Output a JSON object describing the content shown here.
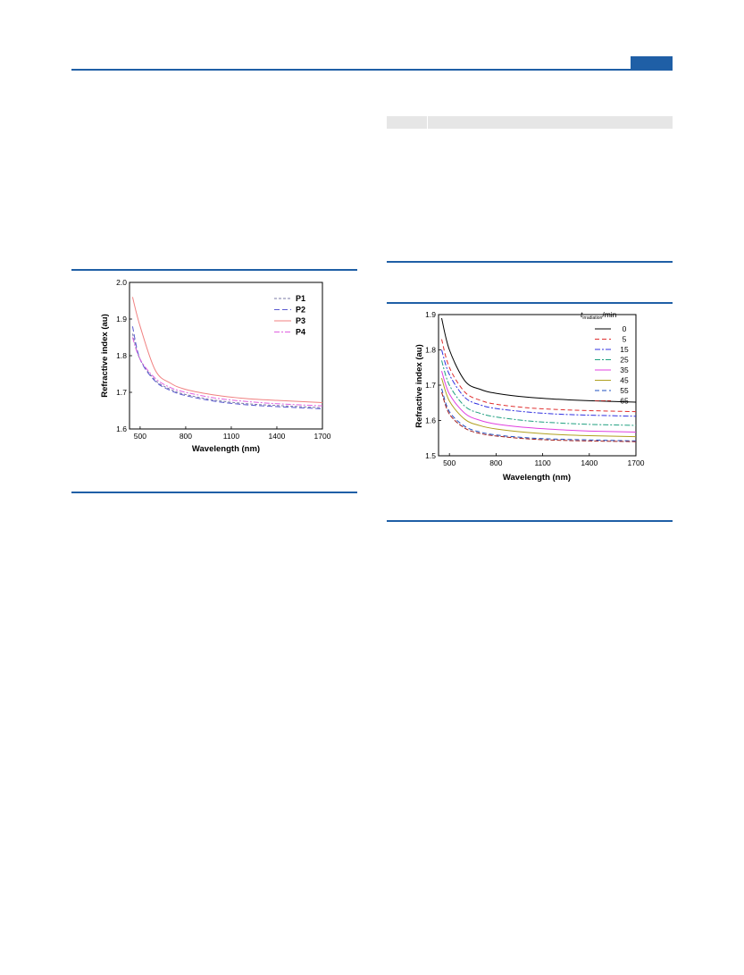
{
  "chart_data": [
    {
      "type": "line",
      "title": "",
      "xlabel": "Wavelength (nm)",
      "ylabel": "Refractive index (au)",
      "xlim": [
        430,
        1700
      ],
      "ylim": [
        1.6,
        2.0
      ],
      "xticks": [
        500,
        800,
        1100,
        1400,
        1700
      ],
      "yticks": [
        1.6,
        1.7,
        1.8,
        1.9,
        2.0
      ],
      "ytick_labels": [
        "1.6",
        "1.7",
        "1.8",
        "1.9",
        "2.0"
      ],
      "legend_position": "top-right",
      "x": [
        450,
        500,
        600,
        700,
        800,
        1000,
        1200,
        1400,
        1700
      ],
      "series": [
        {
          "name": "P1",
          "color": "#7a7aa6",
          "dash": "3,2",
          "values": [
            1.86,
            1.79,
            1.733,
            1.708,
            1.694,
            1.678,
            1.669,
            1.664,
            1.658
          ]
        },
        {
          "name": "P2",
          "color": "#5a5ad0",
          "dash": "6,3",
          "values": [
            1.88,
            1.79,
            1.73,
            1.705,
            1.691,
            1.675,
            1.666,
            1.661,
            1.655
          ]
        },
        {
          "name": "P3",
          "color": "#f08080",
          "dash": "",
          "values": [
            1.96,
            1.88,
            1.76,
            1.725,
            1.708,
            1.692,
            1.683,
            1.678,
            1.672
          ]
        },
        {
          "name": "P4",
          "color": "#e060e0",
          "dash": "6,2,2,2",
          "values": [
            1.85,
            1.79,
            1.738,
            1.713,
            1.7,
            1.684,
            1.675,
            1.669,
            1.663
          ]
        }
      ]
    },
    {
      "type": "line",
      "title": "",
      "xlabel": "Wavelength (nm)",
      "ylabel": "Refractive index (au)",
      "xlim": [
        430,
        1700
      ],
      "ylim": [
        1.5,
        1.9
      ],
      "xticks": [
        500,
        800,
        1100,
        1400,
        1700
      ],
      "yticks": [
        1.5,
        1.6,
        1.7,
        1.8,
        1.9
      ],
      "ytick_labels": [
        "1.5",
        "1.6",
        "1.7",
        "1.8",
        "1.9"
      ],
      "legend_title_main": "t",
      "legend_title_sub": "irradiation",
      "legend_title_unit": "/min",
      "legend_position": "top-right",
      "x": [
        450,
        500,
        600,
        700,
        800,
        1000,
        1200,
        1400,
        1700
      ],
      "series": [
        {
          "name": "0",
          "color": "#000000",
          "dash": "",
          "values": [
            1.89,
            1.8,
            1.712,
            1.688,
            1.677,
            1.666,
            1.66,
            1.656,
            1.652
          ]
        },
        {
          "name": "5",
          "color": "#e03030",
          "dash": "5,3",
          "values": [
            1.83,
            1.75,
            1.68,
            1.657,
            1.646,
            1.636,
            1.631,
            1.628,
            1.625
          ]
        },
        {
          "name": "15",
          "color": "#3030e0",
          "dash": "6,2,2,2",
          "values": [
            1.8,
            1.73,
            1.665,
            1.644,
            1.634,
            1.624,
            1.618,
            1.615,
            1.612
          ]
        },
        {
          "name": "25",
          "color": "#20a080",
          "dash": "6,2,2,2",
          "values": [
            1.77,
            1.7,
            1.64,
            1.62,
            1.61,
            1.599,
            1.593,
            1.589,
            1.586
          ]
        },
        {
          "name": "35",
          "color": "#e040e0",
          "dash": "",
          "values": [
            1.74,
            1.675,
            1.62,
            1.6,
            1.59,
            1.58,
            1.574,
            1.57,
            1.567
          ]
        },
        {
          "name": "45",
          "color": "#b0a020",
          "dash": "",
          "values": [
            1.72,
            1.655,
            1.603,
            1.585,
            1.576,
            1.566,
            1.56,
            1.557,
            1.554
          ]
        },
        {
          "name": "55",
          "color": "#2050c0",
          "dash": "5,3",
          "values": [
            1.69,
            1.625,
            1.583,
            1.567,
            1.559,
            1.551,
            1.547,
            1.545,
            1.542
          ]
        },
        {
          "name": "65",
          "color": "#a02020",
          "dash": "5,2",
          "values": [
            1.68,
            1.618,
            1.578,
            1.563,
            1.556,
            1.548,
            1.544,
            1.542,
            1.54
          ]
        }
      ]
    }
  ]
}
